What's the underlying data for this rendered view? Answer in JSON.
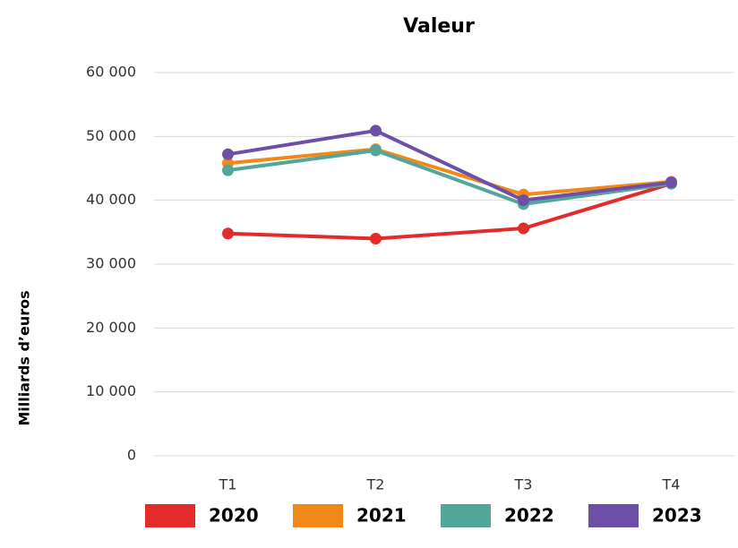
{
  "chart_data": {
    "type": "line",
    "title": "Valeur",
    "y_label": "Milliards d’euros",
    "categories": [
      "T1",
      "T2",
      "T3",
      "T4"
    ],
    "series": [
      {
        "name": "2020",
        "color": "#e32b2b",
        "values": [
          34800,
          34000,
          35600,
          42600
        ]
      },
      {
        "name": "2021",
        "color": "#f0891a",
        "values": [
          45800,
          48000,
          40900,
          42900
        ]
      },
      {
        "name": "2022",
        "color": "#52a79a",
        "values": [
          44700,
          47800,
          39400,
          42600
        ]
      },
      {
        "name": "2023",
        "color": "#6e4fa8",
        "values": [
          47200,
          50900,
          40000,
          42800
        ]
      }
    ],
    "ylim": [
      0,
      60000
    ],
    "yticks": [
      0,
      {
        "value": 10000,
        "label": "10 000"
      },
      {
        "value": 20000,
        "label": "20 000"
      },
      {
        "value": 30000,
        "label": "30 000"
      },
      {
        "value": 40000,
        "label": "40 000"
      },
      {
        "value": 50000,
        "label": "50 000"
      },
      {
        "value": 60000,
        "label": "60 000"
      }
    ],
    "grid": true,
    "legend": "bottom"
  }
}
